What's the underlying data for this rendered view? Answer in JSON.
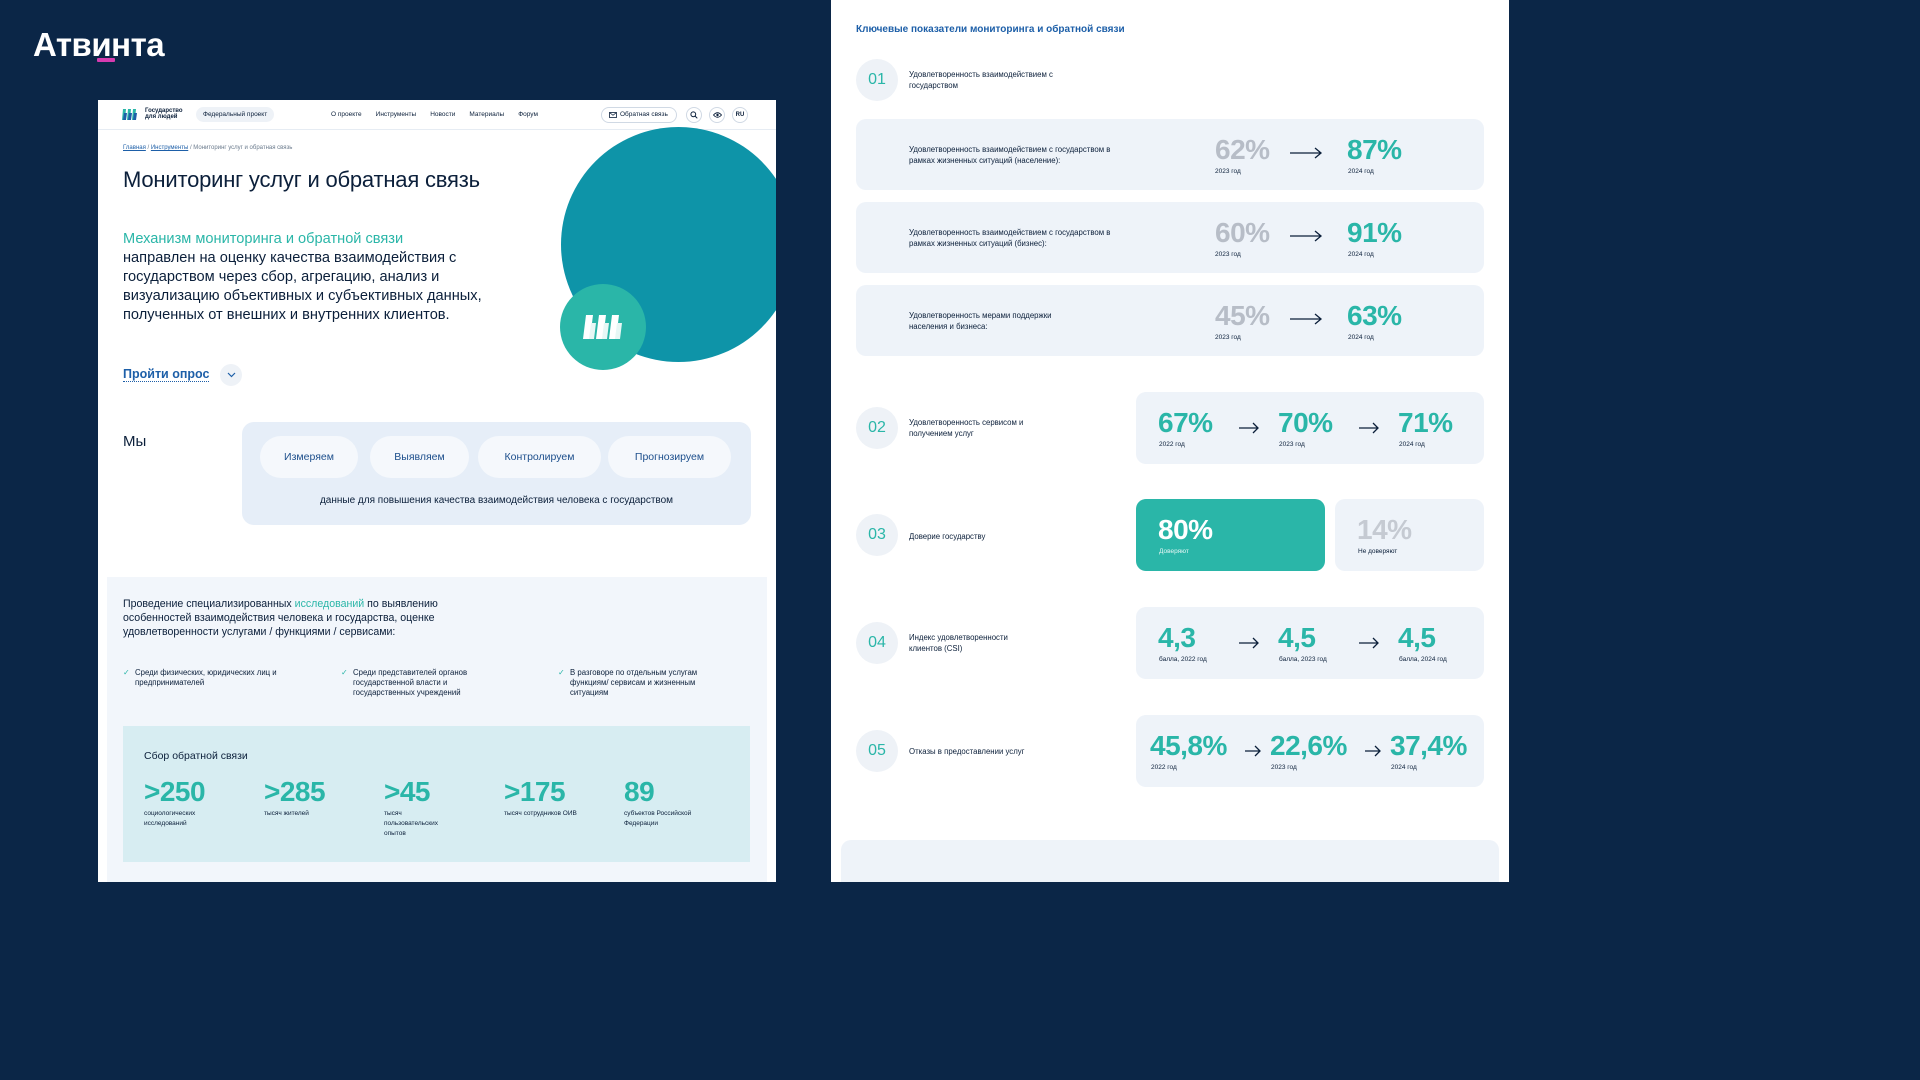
{
  "brand": {
    "name": "Атвинта"
  },
  "left": {
    "header": {
      "logo_text_1": "Государство",
      "logo_text_2": "для людей",
      "fed_badge": "Федеральный проект",
      "nav": [
        "О проекте",
        "Инструменты",
        "Новости",
        "Материалы",
        "Форум"
      ],
      "feedback_btn": "Обратная связь",
      "lang": "RU"
    },
    "breadcrumbs": {
      "home": "Главная",
      "tools": "Инструменты",
      "current": "Мониторинг услуг и обратная связь"
    },
    "title": "Мониторинг услуг и обратная связь",
    "lead_accent": "Механизм мониторинга и обратной связи",
    "lead_text": "направлен на оценку качества взаимодействия с государством через сбор, агрегацию, анализ и визуализацию объективных и субъективных данных, полученных от внешних и внутренних клиентов.",
    "survey_link": "Пройти опрос",
    "we_label": "Мы",
    "we_pills": [
      "Измеряем",
      "Выявляем",
      "Контролируем",
      "Прогнозируем"
    ],
    "we_caption": "данные для повышения качества взаимодействия человека с государством",
    "research": {
      "title_before": "Проведение специализированных",
      "title_link": "исследований",
      "title_after": "по выявлению особенностей взаимодействия человека и государства, оценке удовлетворенности услугами / функциями / сервисами:",
      "checks": [
        "Среди физических, юридических лиц и предпринимателей",
        "Среди представителей органов государственной власти и государственных учреждений",
        "В разговоре по отдельным услугам функциям/ сервисам и жизненным ситуациям"
      ]
    },
    "collect": {
      "title": "Сбор обратной связи",
      "stats": [
        {
          "num": ">250",
          "label": "социологических исследований"
        },
        {
          "num": ">285",
          "label": "тысяч жителей"
        },
        {
          "num": ">45",
          "label": "тысяч пользовательских опытов"
        },
        {
          "num": ">175",
          "label": "тысяч сотрудников ОИВ"
        },
        {
          "num": "89",
          "label": "субъектов Российской Федерации"
        }
      ]
    }
  },
  "right": {
    "title": "Ключевые показатели мониторинга и обратной связи",
    "s1": {
      "num": "01",
      "label": "Удовлетворенность взаимодействием с государством",
      "cards": [
        {
          "label": "Удовлетворенность взаимодействием с государством в рамках жизненных ситуаций (население):",
          "from": "62%",
          "from_year": "2023 год",
          "to": "87%",
          "to_year": "2024 год"
        },
        {
          "label": "Удовлетворенность взаимодействием с государством в рамках жизненных ситуаций (бизнес):",
          "from": "60%",
          "from_year": "2023 год",
          "to": "91%",
          "to_year": "2024 год"
        },
        {
          "label": "Удовлетворенность мерами поддержки населения и бизнеса:",
          "from": "45%",
          "from_year": "2023 год",
          "to": "63%",
          "to_year": "2024 год"
        }
      ]
    },
    "s2": {
      "num": "02",
      "label": "Удовлетворенность сервисом и получением услуг",
      "vals": [
        {
          "v": "67%",
          "c": "2022 год"
        },
        {
          "v": "70%",
          "c": "2023 год"
        },
        {
          "v": "71%",
          "c": "2024 год"
        }
      ]
    },
    "s3": {
      "num": "03",
      "label": "Доверие государству",
      "trust": {
        "v": "80%",
        "c": "Доверяют"
      },
      "notrust": {
        "v": "14%",
        "c": "Не доверяют"
      }
    },
    "s4": {
      "num": "04",
      "label": "Индекс удовлетворенности клиентов (CSI)",
      "vals": [
        {
          "v": "4,3",
          "c": "балла, 2022 год"
        },
        {
          "v": "4,5",
          "c": "балла, 2023 год"
        },
        {
          "v": "4,5",
          "c": "балла, 2024 год"
        }
      ]
    },
    "s5": {
      "num": "05",
      "label": "Отказы в предоставлении услуг",
      "vals": [
        {
          "v": "45,8%",
          "c": "2022 год"
        },
        {
          "v": "22,6%",
          "c": "2023 год"
        },
        {
          "v": "37,4%",
          "c": "2024 год"
        }
      ]
    }
  }
}
